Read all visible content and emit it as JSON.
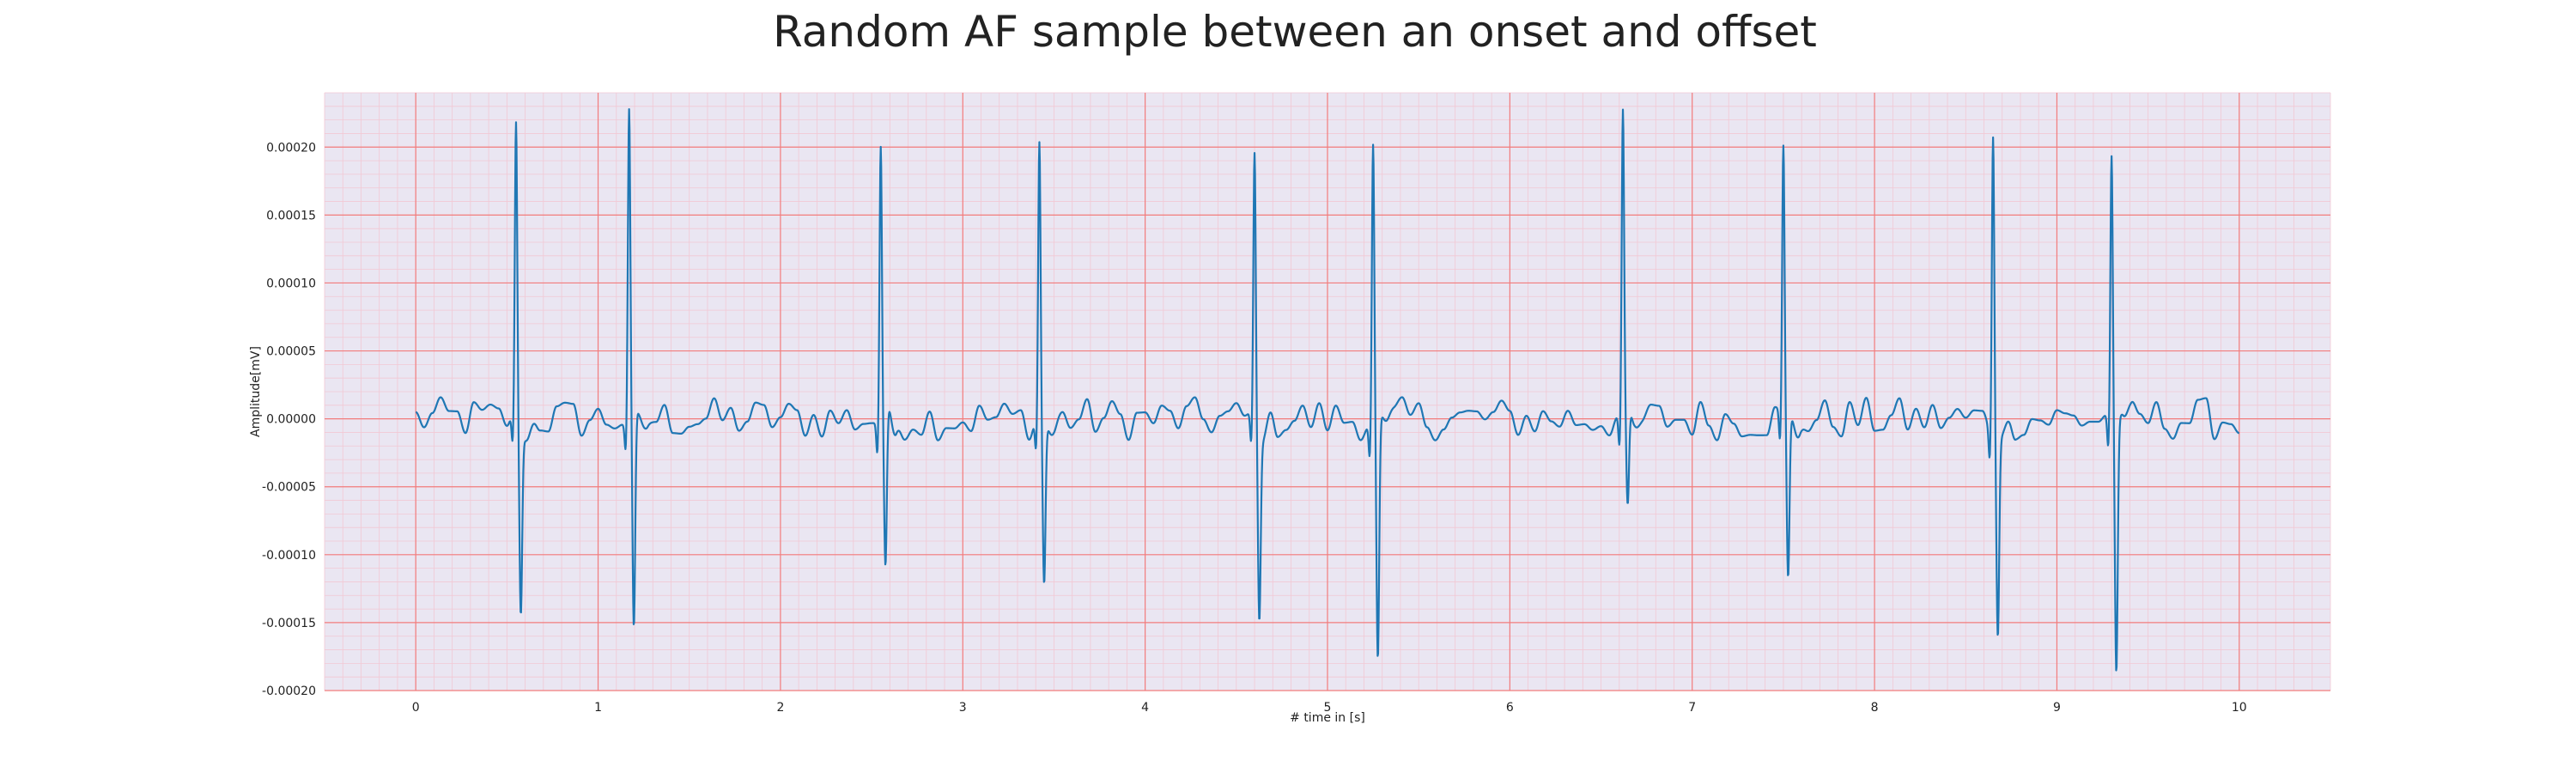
{
  "chart_data": {
    "type": "line",
    "title": "Random AF sample between an onset and offset",
    "xlabel": "# time in [s]",
    "ylabel": "Amplitude[mV]",
    "xlim": [
      -0.5,
      10.5
    ],
    "ylim": [
      -0.0002,
      0.00024
    ],
    "x_ticks": [
      "0",
      "1",
      "2",
      "3",
      "4",
      "5",
      "6",
      "7",
      "8",
      "9",
      "10"
    ],
    "y_ticks": [
      "-0.00020",
      "-0.00015",
      "-0.00010",
      "-0.00005",
      "0.00000",
      "0.00005",
      "0.00010",
      "0.00015",
      "0.00020"
    ],
    "grid": true,
    "colors": {
      "background": "#eae6f2",
      "major_grid": "#f27c7c",
      "minor_grid": "#f2c8d4",
      "line": "#1f77b4"
    },
    "series": [
      {
        "beats": [
          {
            "t": 0.55,
            "r_peak": 0.00021,
            "s_trough": -0.000138
          },
          {
            "t": 1.17,
            "r_peak": 0.000218,
            "s_trough": -0.000165
          },
          {
            "t": 2.55,
            "r_peak": 0.000203,
            "s_trough": -0.000117
          },
          {
            "t": 3.42,
            "r_peak": 0.000203,
            "s_trough": -0.000119
          },
          {
            "t": 4.6,
            "r_peak": 0.000192,
            "s_trough": -0.000137
          },
          {
            "t": 5.25,
            "r_peak": 0.000202,
            "s_trough": -0.000182
          },
          {
            "t": 6.62,
            "r_peak": 0.000217,
            "s_trough": -7.6e-05
          },
          {
            "t": 7.5,
            "r_peak": 0.000195,
            "s_trough": -0.000122
          },
          {
            "t": 8.65,
            "r_peak": 0.000216,
            "s_trough": -0.000148
          },
          {
            "t": 9.3,
            "r_peak": 0.000197,
            "s_trough": -0.000181
          }
        ],
        "x_start": 0,
        "x_end": 10,
        "baseline": 0
      }
    ]
  }
}
